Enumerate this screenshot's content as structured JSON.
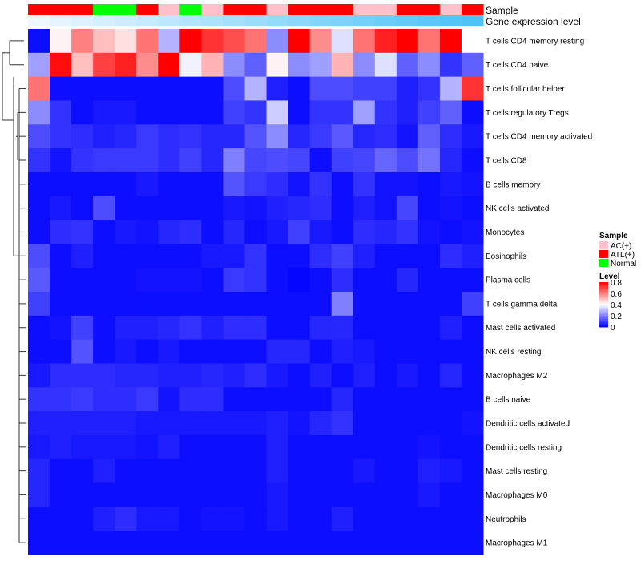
{
  "chart_data": {
    "type": "heatmap",
    "annotation_labels": {
      "sample": "Sample",
      "gene_expression": "Gene expression level"
    },
    "sample_groups": [
      "ATL(+)",
      "ATL(+)",
      "ATL(+)",
      "Normal",
      "Normal",
      "ATL(+)",
      "AC(+)",
      "Normal",
      "AC(+)",
      "ATL(+)",
      "ATL(+)",
      "AC(+)",
      "ATL(+)",
      "ATL(+)",
      "ATL(+)",
      "AC(+)",
      "AC(+)",
      "ATL(+)",
      "ATL(+)",
      "AC(+)",
      "ATL(+)"
    ],
    "gene_expression_level": [
      0.02,
      0.07,
      0.12,
      0.17,
      0.22,
      0.27,
      0.32,
      0.37,
      0.42,
      0.47,
      0.52,
      0.57,
      0.62,
      0.67,
      0.72,
      0.77,
      0.82,
      0.87,
      0.92,
      0.97,
      1.0
    ],
    "rows": [
      "T cells CD4 memory resting",
      "T cells CD4 naive",
      "T cells follicular helper",
      "T cells regulatory  Tregs",
      "T cells CD4 memory activated",
      "T cells CD8",
      "B cells memory",
      "NK cells activated",
      "Monocytes",
      "Eosinophils",
      "Plasma cells",
      "T cells gamma delta",
      "Mast cells activated",
      "NK cells resting",
      "Macrophages M2",
      "B cells naive",
      "Dendritic cells activated",
      "Dendritic cells resting",
      "Mast cells resting",
      "Macrophages M0",
      "Neutrophils",
      "Macrophages M1"
    ],
    "values": [
      [
        0.02,
        0.42,
        0.6,
        0.5,
        0.45,
        0.62,
        0.28,
        0.8,
        0.72,
        0.68,
        0.62,
        0.22,
        0.8,
        0.58,
        0.35,
        0.62,
        0.75,
        0.8,
        0.62,
        0.8,
        0.4
      ],
      [
        0.25,
        0.78,
        0.5,
        0.7,
        0.75,
        0.58,
        0.8,
        0.38,
        0.52,
        0.22,
        0.15,
        0.42,
        0.22,
        0.25,
        0.52,
        0.22,
        0.35,
        0.15,
        0.22,
        0.08,
        0.15
      ],
      [
        0.62,
        0.02,
        0.02,
        0.02,
        0.02,
        0.02,
        0.02,
        0.02,
        0.02,
        0.12,
        0.28,
        0.05,
        0.02,
        0.12,
        0.12,
        0.1,
        0.1,
        0.05,
        0.08,
        0.28,
        0.72
      ],
      [
        0.22,
        0.08,
        0.02,
        0.04,
        0.04,
        0.02,
        0.02,
        0.02,
        0.02,
        0.1,
        0.08,
        0.32,
        0.02,
        0.08,
        0.08,
        0.25,
        0.08,
        0.05,
        0.1,
        0.15,
        0.02
      ],
      [
        0.12,
        0.08,
        0.07,
        0.05,
        0.06,
        0.09,
        0.07,
        0.08,
        0.06,
        0.06,
        0.13,
        0.22,
        0.06,
        0.09,
        0.14,
        0.06,
        0.07,
        0.03,
        0.15,
        0.07,
        0.04
      ],
      [
        0.08,
        0.03,
        0.08,
        0.09,
        0.09,
        0.09,
        0.07,
        0.1,
        0.06,
        0.2,
        0.11,
        0.12,
        0.11,
        0.02,
        0.1,
        0.11,
        0.16,
        0.12,
        0.18,
        0.06,
        0.02
      ],
      [
        0.02,
        0.02,
        0.02,
        0.02,
        0.02,
        0.04,
        0.02,
        0.02,
        0.02,
        0.13,
        0.09,
        0.07,
        0.03,
        0.08,
        0.02,
        0.08,
        0.03,
        0.03,
        0.02,
        0.04,
        0.03
      ],
      [
        0.02,
        0.04,
        0.02,
        0.12,
        0.02,
        0.02,
        0.02,
        0.02,
        0.02,
        0.04,
        0.03,
        0.05,
        0.06,
        0.07,
        0.02,
        0.05,
        0.03,
        0.11,
        0.02,
        0.03,
        0.02
      ],
      [
        0.02,
        0.07,
        0.08,
        0.02,
        0.04,
        0.03,
        0.06,
        0.07,
        0.02,
        0.06,
        0.02,
        0.04,
        0.1,
        0.04,
        0.02,
        0.07,
        0.06,
        0.08,
        0.03,
        0.02,
        0.03
      ],
      [
        0.12,
        0.02,
        0.05,
        0.02,
        0.02,
        0.02,
        0.02,
        0.02,
        0.04,
        0.04,
        0.08,
        0.02,
        0.02,
        0.07,
        0.1,
        0.05,
        0.02,
        0.02,
        0.02,
        0.07,
        0.05
      ],
      [
        0.14,
        0.02,
        0.02,
        0.02,
        0.02,
        0.03,
        0.03,
        0.03,
        0.02,
        0.09,
        0.08,
        0.02,
        0.01,
        0.02,
        0.07,
        0.02,
        0.02,
        0.06,
        0.02,
        0.02,
        0.02
      ],
      [
        0.1,
        0.02,
        0.02,
        0.02,
        0.02,
        0.02,
        0.02,
        0.02,
        0.02,
        0.02,
        0.02,
        0.02,
        0.02,
        0.02,
        0.2,
        0.02,
        0.02,
        0.02,
        0.02,
        0.02,
        0.1
      ],
      [
        0.02,
        0.03,
        0.1,
        0.02,
        0.05,
        0.05,
        0.06,
        0.08,
        0.05,
        0.07,
        0.07,
        0.02,
        0.02,
        0.06,
        0.06,
        0.02,
        0.02,
        0.02,
        0.02,
        0.05,
        0.02
      ],
      [
        0.02,
        0.02,
        0.13,
        0.02,
        0.04,
        0.02,
        0.04,
        0.02,
        0.02,
        0.02,
        0.02,
        0.06,
        0.06,
        0.02,
        0.05,
        0.04,
        0.02,
        0.02,
        0.02,
        0.02,
        0.02
      ],
      [
        0.04,
        0.07,
        0.07,
        0.07,
        0.06,
        0.06,
        0.05,
        0.05,
        0.06,
        0.05,
        0.07,
        0.04,
        0.02,
        0.05,
        0.02,
        0.05,
        0.02,
        0.04,
        0.02,
        0.06,
        0.02
      ],
      [
        0.08,
        0.08,
        0.09,
        0.07,
        0.07,
        0.09,
        0.03,
        0.07,
        0.07,
        0.02,
        0.02,
        0.02,
        0.02,
        0.02,
        0.06,
        0.02,
        0.02,
        0.02,
        0.02,
        0.02,
        0.02
      ],
      [
        0.05,
        0.05,
        0.05,
        0.05,
        0.05,
        0.04,
        0.04,
        0.04,
        0.04,
        0.04,
        0.04,
        0.05,
        0.03,
        0.06,
        0.08,
        0.02,
        0.02,
        0.02,
        0.02,
        0.02,
        0.03
      ],
      [
        0.04,
        0.05,
        0.04,
        0.04,
        0.04,
        0.03,
        0.05,
        0.02,
        0.02,
        0.02,
        0.02,
        0.05,
        0.02,
        0.02,
        0.02,
        0.02,
        0.02,
        0.02,
        0.03,
        0.02,
        0.02
      ],
      [
        0.06,
        0.02,
        0.02,
        0.05,
        0.02,
        0.02,
        0.02,
        0.02,
        0.02,
        0.02,
        0.02,
        0.05,
        0.02,
        0.02,
        0.02,
        0.04,
        0.02,
        0.02,
        0.05,
        0.04,
        0.02
      ],
      [
        0.06,
        0.02,
        0.02,
        0.02,
        0.02,
        0.02,
        0.02,
        0.02,
        0.02,
        0.02,
        0.02,
        0.04,
        0.02,
        0.02,
        0.02,
        0.02,
        0.02,
        0.02,
        0.04,
        0.02,
        0.02
      ],
      [
        0.02,
        0.02,
        0.02,
        0.05,
        0.07,
        0.04,
        0.04,
        0.02,
        0.03,
        0.03,
        0.02,
        0.04,
        0.02,
        0.02,
        0.05,
        0.02,
        0.02,
        0.02,
        0.02,
        0.02,
        0.02
      ],
      [
        0.02,
        0.02,
        0.02,
        0.02,
        0.02,
        0.02,
        0.02,
        0.02,
        0.02,
        0.02,
        0.02,
        0.02,
        0.02,
        0.02,
        0.02,
        0.02,
        0.02,
        0.02,
        0.02,
        0.02,
        0.02
      ]
    ],
    "color_scale": {
      "min_color": "#0000ff",
      "mid_color": "#ffffff",
      "max_color": "#ff0000",
      "range": [
        0,
        0.8
      ]
    },
    "sample_colors": {
      "AC(+)": "#ffc0cb",
      "ATL(+)": "#ff0000",
      "Normal": "#00ff00"
    },
    "expression_colors": {
      "low": "#f0f8ff",
      "high": "#4fc3f7"
    },
    "legend": {
      "sample_title": "Sample",
      "sample_entries": [
        "AC(+)",
        "ATL(+)",
        "Normal"
      ],
      "level_title": "Level",
      "level_ticks": [
        "0.8",
        "0.6",
        "0.4",
        "0.2",
        "0"
      ],
      "level_tick_values": [
        0.8,
        0.6,
        0.4,
        0.2,
        0
      ]
    }
  }
}
